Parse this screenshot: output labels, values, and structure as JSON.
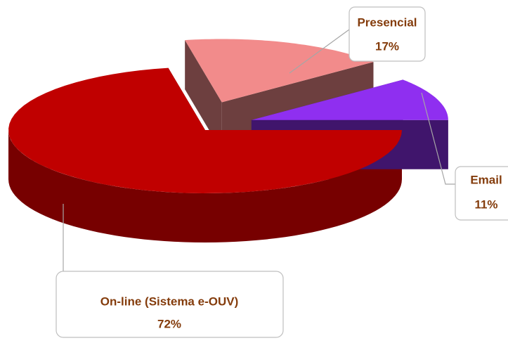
{
  "chart_data": {
    "type": "pie",
    "categories": [
      "On-line (Sistema e-OUV)",
      "Presencial",
      "Email"
    ],
    "values": [
      72,
      17,
      11
    ],
    "value_labels": [
      "72%",
      "17%",
      "11%"
    ],
    "colors": [
      "#c00000",
      "#f28b8b",
      "#8f2ff0"
    ],
    "start_angle": 0,
    "direction": "clockwise",
    "exploded": [
      false,
      true,
      true
    ],
    "three_d": true
  }
}
